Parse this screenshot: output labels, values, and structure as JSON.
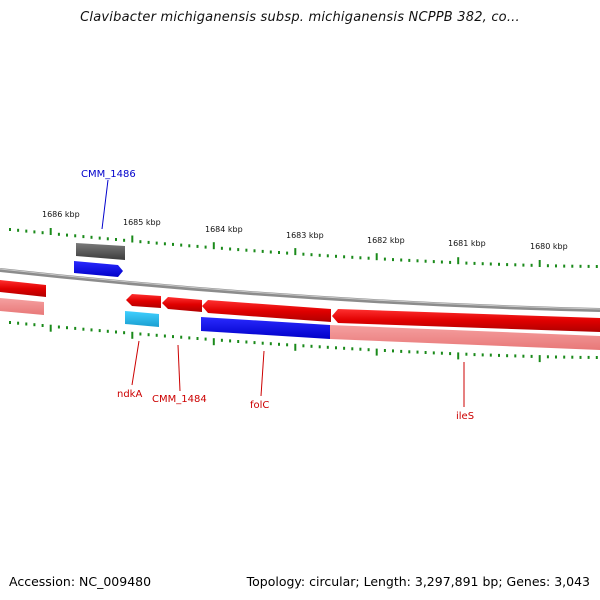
{
  "title": "Clavibacter michiganensis subsp. michiganensis NCPPB 382, co...",
  "footer": {
    "accession": "Accession: NC_009480",
    "summary": "Topology: circular; Length: 3,297,891 bp; Genes: 3,043"
  },
  "colors": {
    "tick": "#1a8a1a",
    "backbone": "#8c8c8c",
    "gene_forward": "#0000ee",
    "gene_reverse": "#ee0000",
    "gene_other": "#555555",
    "gene_light_blue": "#22b0e0",
    "label_forward": "#0000cc",
    "label_reverse": "#cc0000"
  },
  "ruler_labels": [
    "1686 kbp",
    "1685 kbp",
    "1684 kbp",
    "1683 kbp",
    "1682 kbp",
    "1681 kbp",
    "1680 kbp"
  ],
  "gene_labels": [
    {
      "text": "CMM_1486",
      "strand": "forward"
    },
    {
      "text": "ndkA",
      "strand": "reverse"
    },
    {
      "text": "CMM_1484",
      "strand": "reverse"
    },
    {
      "text": "folC",
      "strand": "reverse"
    },
    {
      "text": "ileS",
      "strand": "reverse"
    }
  ]
}
